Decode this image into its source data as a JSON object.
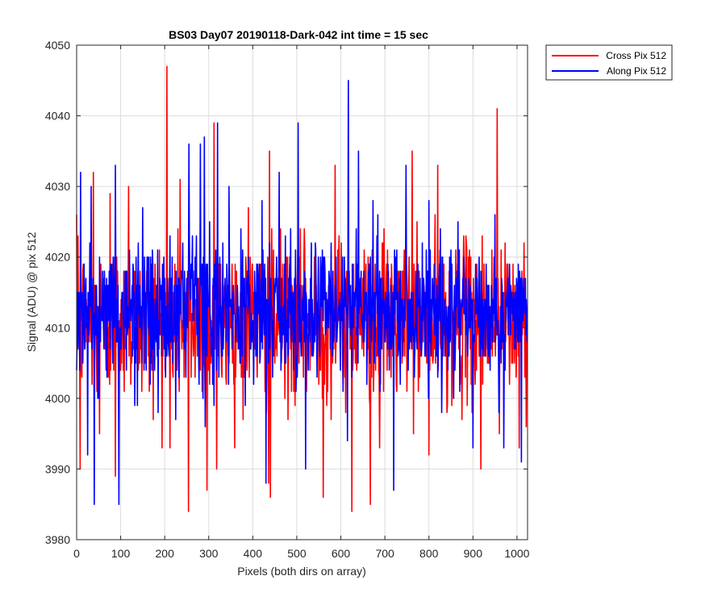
{
  "chart_data": {
    "type": "line",
    "title": "BS03 Day07 20190118-Dark-042 int time = 15 sec",
    "xlabel": "Pixels (both dirs on array)",
    "ylabel": "Signal (ADU) @ pix 512",
    "xlim": [
      0,
      1024
    ],
    "ylim": [
      3980,
      4050
    ],
    "xticks": [
      0,
      100,
      200,
      300,
      400,
      500,
      600,
      700,
      800,
      900,
      1000
    ],
    "yticks": [
      3980,
      3990,
      4000,
      4010,
      4020,
      4030,
      4040,
      4050
    ],
    "grid": true,
    "legend_placement": "outside-top-right",
    "series": [
      {
        "name": "Cross Pix 512",
        "color": "#ff0000",
        "mean": 4011,
        "spread": 5.5,
        "samples": 1024,
        "spikes": [
          {
            "x": 3,
            "y": 4023
          },
          {
            "x": 8,
            "y": 3990
          },
          {
            "x": 38,
            "y": 4032
          },
          {
            "x": 52,
            "y": 3995
          },
          {
            "x": 76,
            "y": 4029
          },
          {
            "x": 88,
            "y": 3989
          },
          {
            "x": 118,
            "y": 4030
          },
          {
            "x": 205,
            "y": 4047
          },
          {
            "x": 212,
            "y": 3993
          },
          {
            "x": 235,
            "y": 4031
          },
          {
            "x": 254,
            "y": 3984
          },
          {
            "x": 296,
            "y": 3987
          },
          {
            "x": 312,
            "y": 4039
          },
          {
            "x": 318,
            "y": 3990
          },
          {
            "x": 390,
            "y": 4027
          },
          {
            "x": 436,
            "y": 3988
          },
          {
            "x": 438,
            "y": 4035
          },
          {
            "x": 440,
            "y": 3986
          },
          {
            "x": 560,
            "y": 3986
          },
          {
            "x": 587,
            "y": 4033
          },
          {
            "x": 625,
            "y": 3984
          },
          {
            "x": 640,
            "y": 4030
          },
          {
            "x": 667,
            "y": 3985
          },
          {
            "x": 688,
            "y": 3993
          },
          {
            "x": 762,
            "y": 4035
          },
          {
            "x": 800,
            "y": 3992
          },
          {
            "x": 820,
            "y": 4033
          },
          {
            "x": 918,
            "y": 3990
          },
          {
            "x": 955,
            "y": 4041
          },
          {
            "x": 960,
            "y": 3995
          },
          {
            "x": 1005,
            "y": 3993
          }
        ]
      },
      {
        "name": "Along Pix 512",
        "color": "#0000ff",
        "mean": 4012,
        "spread": 5,
        "samples": 1024,
        "spikes": [
          {
            "x": 9,
            "y": 4032
          },
          {
            "x": 25,
            "y": 3992
          },
          {
            "x": 40,
            "y": 3985
          },
          {
            "x": 88,
            "y": 4033
          },
          {
            "x": 96,
            "y": 3985
          },
          {
            "x": 150,
            "y": 4027
          },
          {
            "x": 185,
            "y": 3998
          },
          {
            "x": 255,
            "y": 4036
          },
          {
            "x": 281,
            "y": 4036
          },
          {
            "x": 290,
            "y": 4037
          },
          {
            "x": 312,
            "y": 3999
          },
          {
            "x": 320,
            "y": 4039
          },
          {
            "x": 430,
            "y": 3988
          },
          {
            "x": 460,
            "y": 4032
          },
          {
            "x": 503,
            "y": 4039
          },
          {
            "x": 520,
            "y": 3990
          },
          {
            "x": 615,
            "y": 3994
          },
          {
            "x": 617,
            "y": 4045
          },
          {
            "x": 640,
            "y": 4035
          },
          {
            "x": 720,
            "y": 3987
          },
          {
            "x": 748,
            "y": 4033
          },
          {
            "x": 800,
            "y": 4028
          },
          {
            "x": 866,
            "y": 4025
          },
          {
            "x": 900,
            "y": 3993
          },
          {
            "x": 950,
            "y": 4026
          },
          {
            "x": 970,
            "y": 3993
          },
          {
            "x": 1010,
            "y": 3991
          }
        ]
      }
    ]
  }
}
